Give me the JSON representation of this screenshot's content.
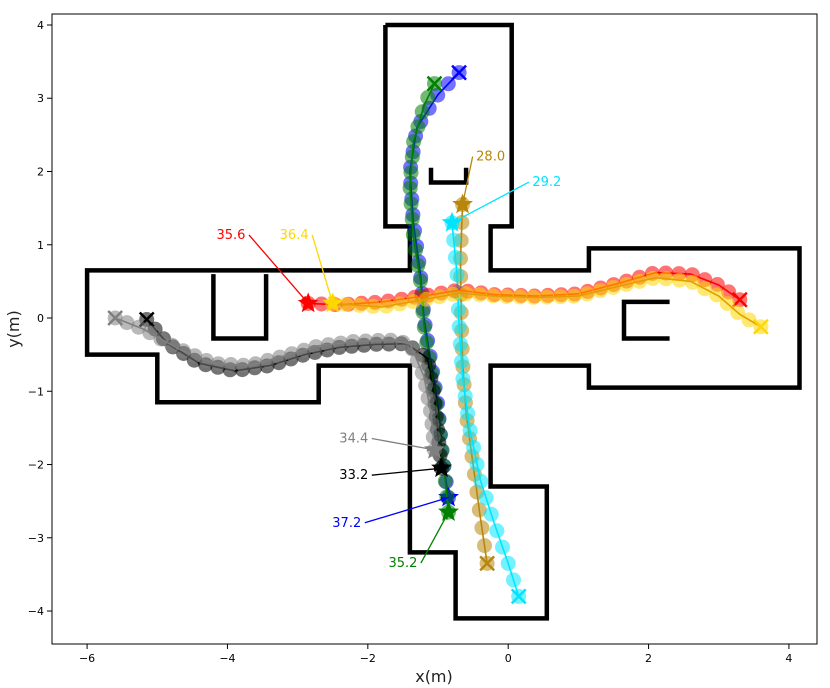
{
  "chart_data": {
    "type": "scatter",
    "xlabel": "x(m)",
    "ylabel": "y(m)",
    "xlim": [
      -6.5,
      4.4
    ],
    "ylim": [
      -4.45,
      4.15
    ],
    "xticks": [
      -6,
      -4,
      -2,
      0,
      2,
      4
    ],
    "yticks": [
      -4,
      -3,
      -2,
      -1,
      0,
      1,
      2,
      3,
      4
    ],
    "x_tick_labels": [
      "−6",
      "−4",
      "−2",
      "0",
      "2",
      "4"
    ],
    "y_tick_labels": [
      "−4",
      "−3",
      "−2",
      "−1",
      "0",
      "1",
      "2",
      "3",
      "4"
    ],
    "grid": false,
    "walls": [
      [
        [
          -1.75,
          4.0
        ],
        [
          0.05,
          4.0
        ],
        [
          0.05,
          1.25
        ],
        [
          -0.25,
          1.25
        ],
        [
          -0.25,
          0.65
        ],
        [
          1.15,
          0.65
        ],
        [
          1.15,
          0.95
        ],
        [
          4.15,
          0.95
        ],
        [
          4.15,
          -0.95
        ],
        [
          1.15,
          -0.95
        ],
        [
          1.15,
          -0.65
        ],
        [
          -0.25,
          -0.65
        ],
        [
          -0.25,
          -2.3
        ],
        [
          0.55,
          -2.3
        ],
        [
          0.55,
          -4.1
        ],
        [
          -0.75,
          -4.1
        ],
        [
          -0.75,
          -3.2
        ],
        [
          -1.4,
          -3.2
        ],
        [
          -1.4,
          -0.65
        ],
        [
          -2.7,
          -0.65
        ],
        [
          -2.7,
          -1.15
        ],
        [
          -5.0,
          -1.15
        ],
        [
          -5.0,
          -0.5
        ],
        [
          -6.0,
          -0.5
        ],
        [
          -6.0,
          0.65
        ],
        [
          -1.4,
          0.65
        ],
        [
          -1.4,
          1.25
        ],
        [
          -1.75,
          1.25
        ],
        [
          -1.75,
          4.0
        ]
      ],
      [
        [
          -1.1,
          2.05
        ],
        [
          -1.1,
          1.85
        ],
        [
          -0.6,
          1.85
        ],
        [
          -0.6,
          2.05
        ]
      ],
      [
        [
          -4.2,
          0.6
        ],
        [
          -4.2,
          -0.28
        ],
        [
          -3.45,
          -0.28
        ],
        [
          -3.45,
          0.6
        ]
      ],
      [
        [
          2.3,
          0.22
        ],
        [
          1.65,
          0.22
        ],
        [
          1.65,
          -0.28
        ],
        [
          2.3,
          -0.28
        ]
      ]
    ],
    "series": [
      {
        "color": "#0000ff",
        "start": [
          -0.7,
          3.35
        ],
        "end": [
          -0.85,
          -2.45
        ],
        "path": [
          [
            -0.7,
            3.35
          ],
          [
            -1.0,
            3.05
          ],
          [
            -1.3,
            2.6
          ],
          [
            -1.4,
            2.0
          ],
          [
            -1.35,
            1.3
          ],
          [
            -1.25,
            0.6
          ],
          [
            -1.2,
            0.0
          ],
          [
            -1.1,
            -0.6
          ],
          [
            -1.0,
            -1.2
          ],
          [
            -0.95,
            -1.8
          ],
          [
            -0.85,
            -2.45
          ]
        ]
      },
      {
        "color": "#008000",
        "start": [
          -1.05,
          3.2
        ],
        "end": [
          -0.85,
          -2.65
        ],
        "path": [
          [
            -1.05,
            3.2
          ],
          [
            -1.2,
            2.9
          ],
          [
            -1.35,
            2.4
          ],
          [
            -1.4,
            1.8
          ],
          [
            -1.35,
            1.1
          ],
          [
            -1.25,
            0.5
          ],
          [
            -1.2,
            -0.1
          ],
          [
            -1.1,
            -0.7
          ],
          [
            -1.0,
            -1.3
          ],
          [
            -0.92,
            -2.0
          ],
          [
            -0.85,
            -2.65
          ]
        ]
      },
      {
        "color": "#b8860b",
        "start": [
          -0.3,
          -3.35
        ],
        "end": [
          -0.65,
          1.55
        ],
        "path": [
          [
            -0.3,
            -3.35
          ],
          [
            -0.4,
            -2.7
          ],
          [
            -0.5,
            -2.0
          ],
          [
            -0.6,
            -1.3
          ],
          [
            -0.65,
            -0.6
          ],
          [
            -0.67,
            0.1
          ],
          [
            -0.68,
            0.8
          ],
          [
            -0.65,
            1.55
          ]
        ]
      },
      {
        "color": "#00e5ff",
        "start": [
          0.15,
          -3.8
        ],
        "end": [
          -0.8,
          1.3
        ],
        "path": [
          [
            0.15,
            -3.8
          ],
          [
            0.0,
            -3.35
          ],
          [
            -0.2,
            -2.8
          ],
          [
            -0.4,
            -2.2
          ],
          [
            -0.55,
            -1.5
          ],
          [
            -0.65,
            -0.8
          ],
          [
            -0.7,
            -0.1
          ],
          [
            -0.73,
            0.6
          ],
          [
            -0.8,
            1.3
          ]
        ]
      },
      {
        "color": "#ff0000",
        "start": [
          3.3,
          0.25
        ],
        "end": [
          -2.85,
          0.2
        ],
        "path": [
          [
            3.3,
            0.25
          ],
          [
            3.0,
            0.45
          ],
          [
            2.6,
            0.6
          ],
          [
            2.1,
            0.62
          ],
          [
            1.6,
            0.48
          ],
          [
            1.0,
            0.33
          ],
          [
            0.4,
            0.3
          ],
          [
            -0.2,
            0.32
          ],
          [
            -0.7,
            0.38
          ],
          [
            -1.2,
            0.3
          ],
          [
            -1.8,
            0.22
          ],
          [
            -2.4,
            0.18
          ],
          [
            -2.85,
            0.2
          ]
        ]
      },
      {
        "color": "#ffd700",
        "start": [
          3.6,
          -0.12
        ],
        "end": [
          -2.5,
          0.2
        ],
        "path": [
          [
            3.6,
            -0.12
          ],
          [
            3.3,
            0.05
          ],
          [
            3.0,
            0.3
          ],
          [
            2.6,
            0.5
          ],
          [
            2.1,
            0.55
          ],
          [
            1.6,
            0.44
          ],
          [
            1.0,
            0.3
          ],
          [
            0.4,
            0.28
          ],
          [
            -0.2,
            0.3
          ],
          [
            -0.7,
            0.34
          ],
          [
            -1.2,
            0.25
          ],
          [
            -1.8,
            0.15
          ],
          [
            -2.5,
            0.2
          ]
        ]
      },
      {
        "color": "#000000",
        "start": [
          -5.15,
          -0.02
        ],
        "end": [
          -0.95,
          -2.05
        ],
        "path": [
          [
            -5.15,
            -0.02
          ],
          [
            -4.85,
            -0.35
          ],
          [
            -4.4,
            -0.62
          ],
          [
            -3.9,
            -0.72
          ],
          [
            -3.4,
            -0.65
          ],
          [
            -2.9,
            -0.5
          ],
          [
            -2.4,
            -0.4
          ],
          [
            -1.9,
            -0.36
          ],
          [
            -1.45,
            -0.35
          ],
          [
            -1.15,
            -0.55
          ],
          [
            -1.05,
            -1.1
          ],
          [
            -1.0,
            -1.6
          ],
          [
            -0.95,
            -2.05
          ]
        ]
      },
      {
        "color": "#808080",
        "start": [
          -5.6,
          0.0
        ],
        "end": [
          -1.05,
          -1.8
        ],
        "path": [
          [
            -5.6,
            0.0
          ],
          [
            -5.2,
            -0.15
          ],
          [
            -4.7,
            -0.42
          ],
          [
            -4.2,
            -0.62
          ],
          [
            -3.7,
            -0.65
          ],
          [
            -3.2,
            -0.52
          ],
          [
            -2.7,
            -0.38
          ],
          [
            -2.2,
            -0.32
          ],
          [
            -1.7,
            -0.3
          ],
          [
            -1.4,
            -0.35
          ],
          [
            -1.2,
            -0.8
          ],
          [
            -1.1,
            -1.3
          ],
          [
            -1.05,
            -1.8
          ]
        ]
      }
    ],
    "annotations": [
      {
        "text": "28.0",
        "color": "#b8860b",
        "text_at": [
          -0.25,
          2.15
        ],
        "target": [
          -0.65,
          1.55
        ]
      },
      {
        "text": "29.2",
        "color": "#00e5ff",
        "text_at": [
          0.55,
          1.8
        ],
        "target": [
          -0.8,
          1.3
        ]
      },
      {
        "text": "35.6",
        "color": "#ff0000",
        "text_at": [
          -3.95,
          1.08
        ],
        "target": [
          -2.85,
          0.2
        ]
      },
      {
        "text": "36.4",
        "color": "#ffd700",
        "text_at": [
          -3.05,
          1.08
        ],
        "target": [
          -2.5,
          0.2
        ]
      },
      {
        "text": "34.4",
        "color": "#808080",
        "text_at": [
          -2.2,
          -1.7
        ],
        "target": [
          -1.05,
          -1.8
        ]
      },
      {
        "text": "33.2",
        "color": "#000000",
        "text_at": [
          -2.2,
          -2.2
        ],
        "target": [
          -0.95,
          -2.05
        ]
      },
      {
        "text": "37.2",
        "color": "#0000ff",
        "text_at": [
          -2.3,
          -2.85
        ],
        "target": [
          -0.85,
          -2.45
        ]
      },
      {
        "text": "35.2",
        "color": "#008000",
        "text_at": [
          -1.5,
          -3.4
        ],
        "target": [
          -0.85,
          -2.65
        ]
      }
    ]
  }
}
